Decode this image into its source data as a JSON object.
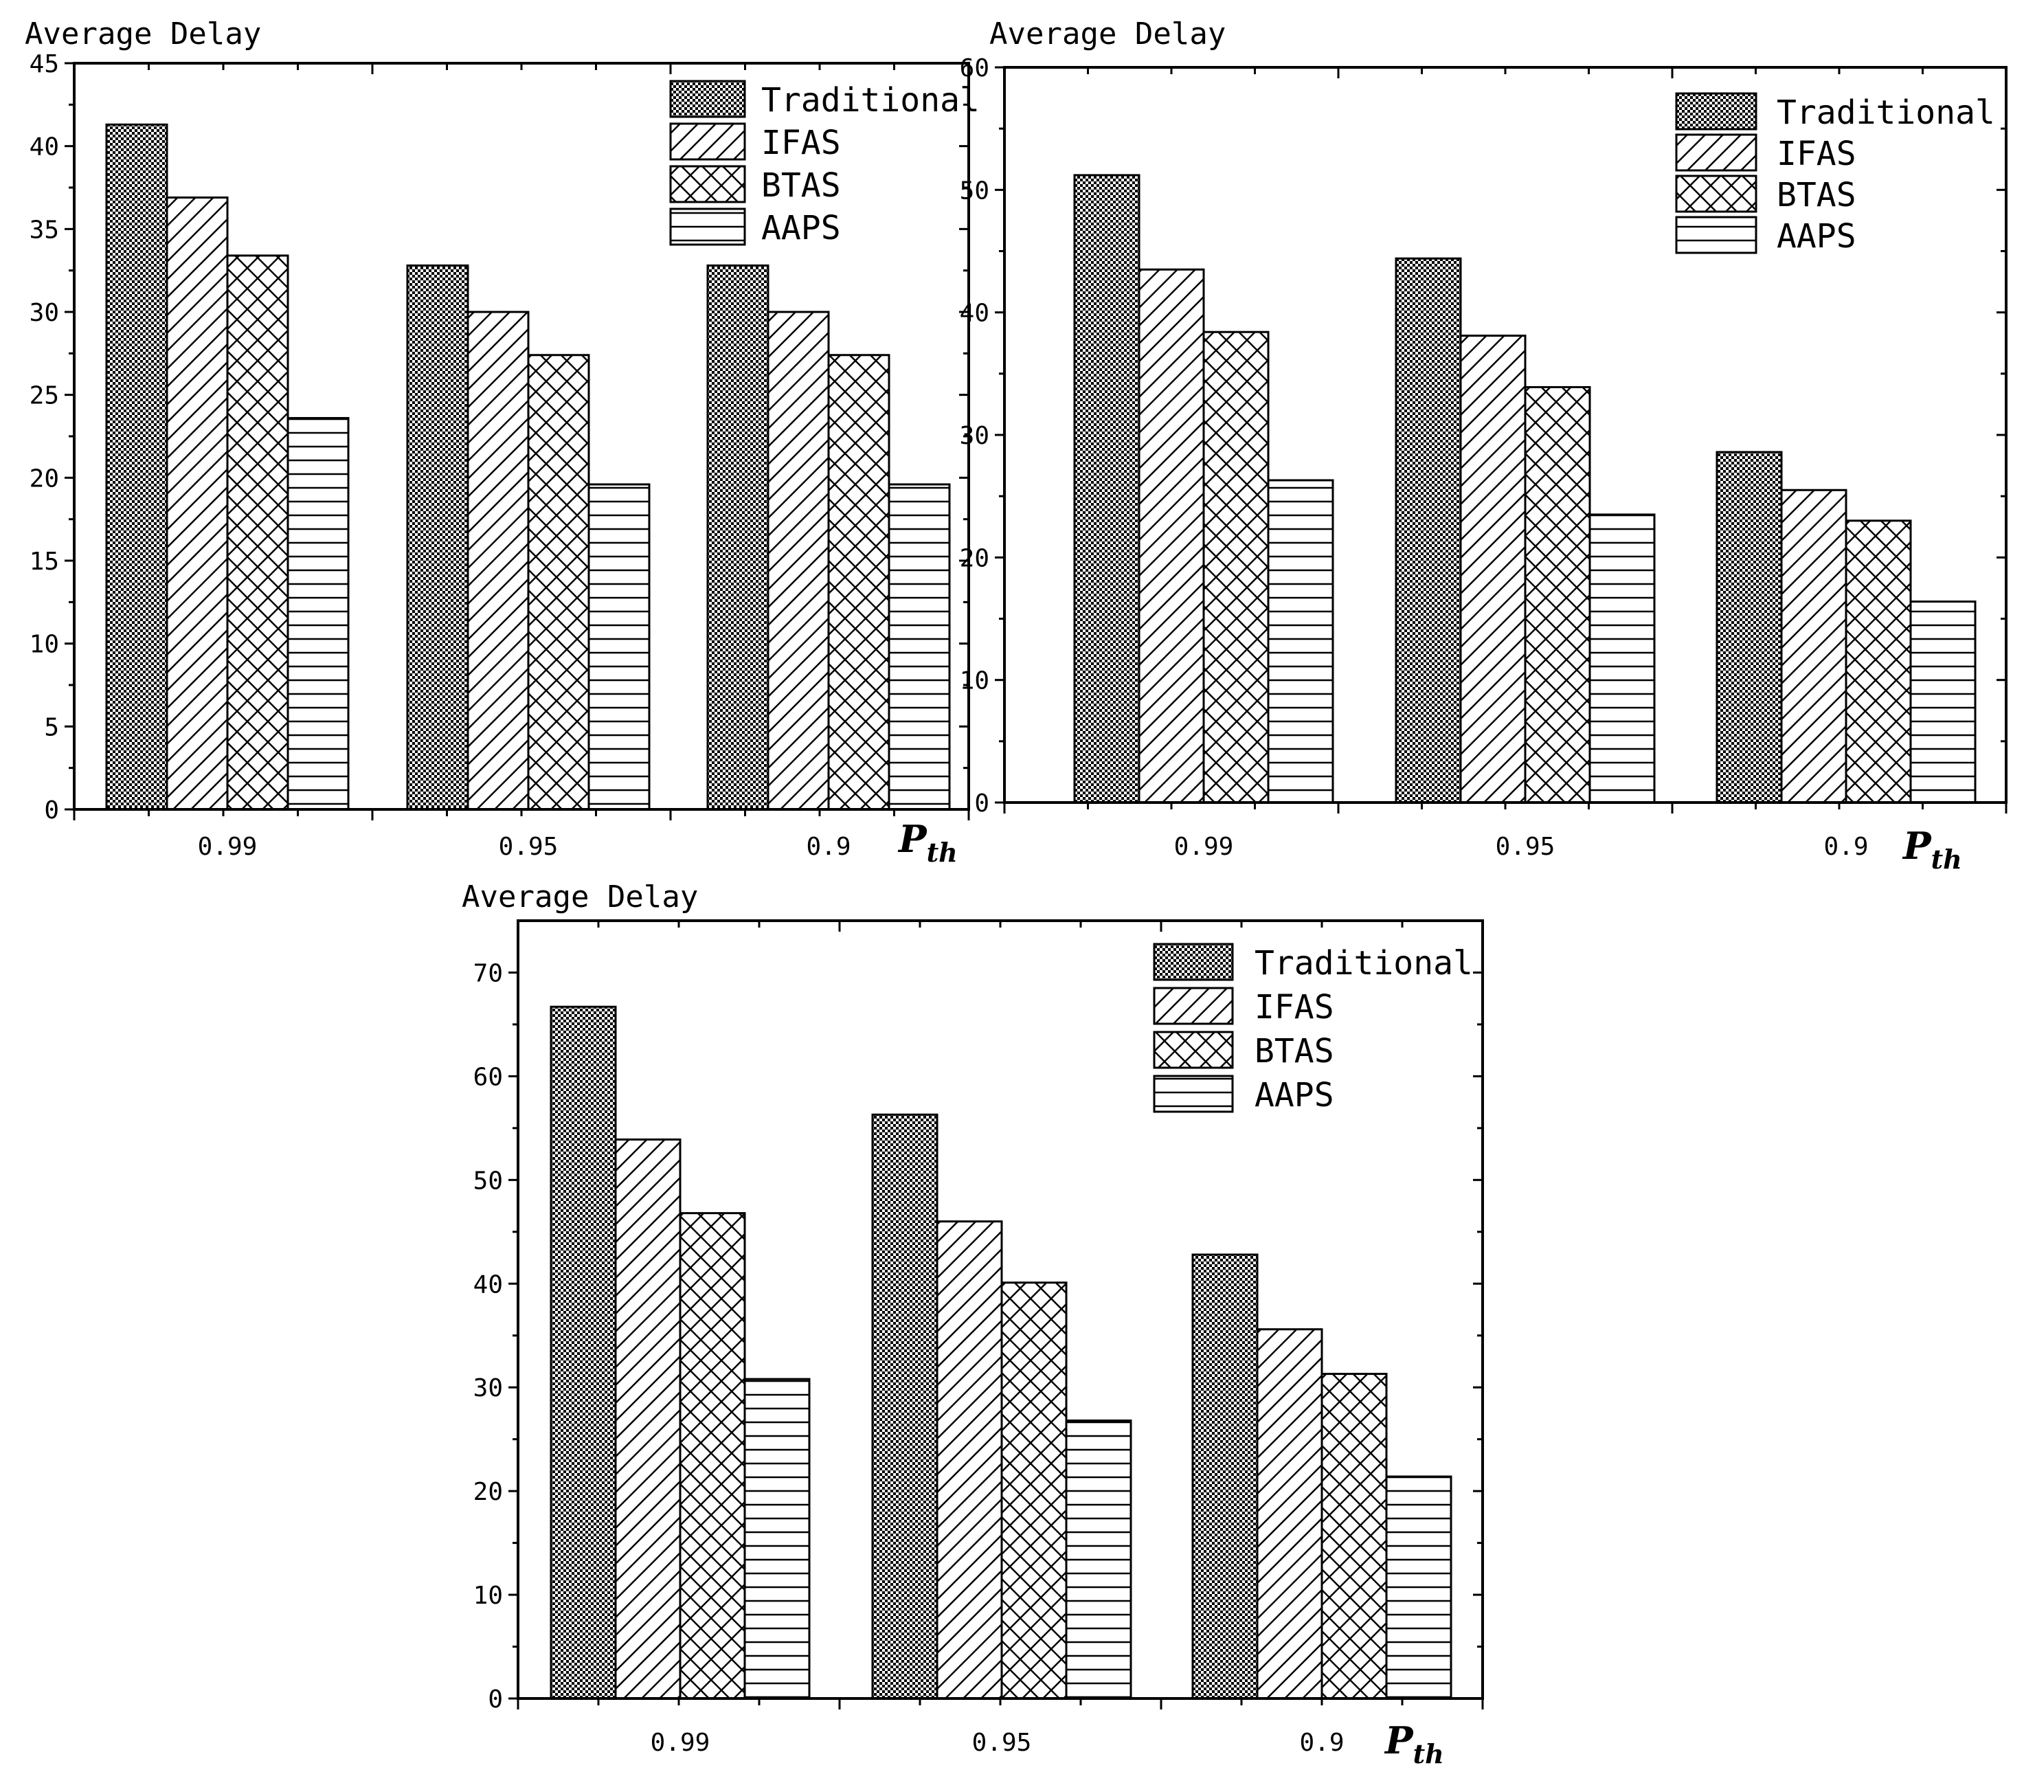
{
  "chart_data": [
    {
      "type": "bar",
      "ylabel": "Average Delay",
      "xlabel": "P",
      "xlabel_subscript": "th",
      "categories": [
        "0.99",
        "0.95",
        "0.9"
      ],
      "ylim": [
        0,
        45
      ],
      "yticks": [
        0,
        5,
        10,
        15,
        20,
        25,
        30,
        35,
        40,
        45
      ],
      "legend_position": "top-right",
      "series": [
        {
          "name": "Traditional",
          "pattern": "checker",
          "values": [
            41.3,
            32.8,
            32.8
          ]
        },
        {
          "name": "IFAS",
          "pattern": "diagonal",
          "values": [
            36.9,
            30.0,
            30.0
          ]
        },
        {
          "name": "BTAS",
          "pattern": "crosshatch",
          "values": [
            33.4,
            27.4,
            27.4
          ]
        },
        {
          "name": "AAPS",
          "pattern": "horizontal",
          "values": [
            23.6,
            19.6,
            19.6
          ]
        }
      ]
    },
    {
      "type": "bar",
      "ylabel": "Average Delay",
      "xlabel": "P",
      "xlabel_subscript": "th",
      "categories": [
        "0.99",
        "0.95",
        "0.9"
      ],
      "ylim": [
        0,
        60
      ],
      "yticks": [
        0,
        10,
        20,
        30,
        40,
        50,
        60
      ],
      "legend_position": "top-right",
      "series": [
        {
          "name": "Traditional",
          "pattern": "checker",
          "values": [
            51.2,
            44.4,
            28.6
          ]
        },
        {
          "name": "IFAS",
          "pattern": "diagonal",
          "values": [
            43.5,
            38.1,
            25.5
          ]
        },
        {
          "name": "BTAS",
          "pattern": "crosshatch",
          "values": [
            38.4,
            33.9,
            23.0
          ]
        },
        {
          "name": "AAPS",
          "pattern": "horizontal",
          "values": [
            26.3,
            23.5,
            16.4
          ]
        }
      ]
    },
    {
      "type": "bar",
      "ylabel": "Average Delay",
      "xlabel": "P",
      "xlabel_subscript": "th",
      "categories": [
        "0.99",
        "0.95",
        "0.9"
      ],
      "ylim": [
        0,
        75
      ],
      "yticks": [
        0,
        10,
        20,
        30,
        40,
        50,
        60,
        70
      ],
      "legend_position": "top-right",
      "series": [
        {
          "name": "Traditional",
          "pattern": "checker",
          "values": [
            66.7,
            56.3,
            42.8
          ]
        },
        {
          "name": "IFAS",
          "pattern": "diagonal",
          "values": [
            53.9,
            46.0,
            35.6
          ]
        },
        {
          "name": "BTAS",
          "pattern": "crosshatch",
          "values": [
            46.8,
            40.1,
            31.3
          ]
        },
        {
          "name": "AAPS",
          "pattern": "horizontal",
          "values": [
            30.8,
            26.8,
            21.4
          ]
        }
      ]
    }
  ]
}
